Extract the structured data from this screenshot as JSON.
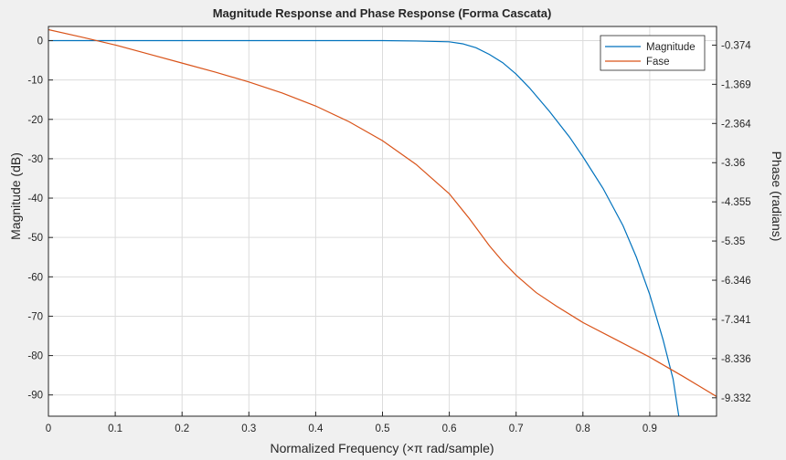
{
  "chart_data": {
    "type": "line",
    "title": "Magnitude Response and Phase Response (Forma Cascata)",
    "xlabel": "Normalized Frequency (×π rad/sample)",
    "ylabel_left": "Magnitude (dB)",
    "ylabel_right": "Phase (radians)",
    "xlim": [
      0,
      1
    ],
    "ylim_left": [
      -95.4,
      3.6
    ],
    "ylim_right": [
      -9.8,
      0.1
    ],
    "x_ticks": [
      "0",
      "0.1",
      "0.2",
      "0.3",
      "0.4",
      "0.5",
      "0.6",
      "0.7",
      "0.8",
      "0.9"
    ],
    "x_tick_values": [
      0,
      0.1,
      0.2,
      0.3,
      0.4,
      0.5,
      0.6,
      0.7,
      0.8,
      0.9
    ],
    "y_left_ticks": [
      "0",
      "-10",
      "-20",
      "-30",
      "-40",
      "-50",
      "-60",
      "-70",
      "-80",
      "-90"
    ],
    "y_left_tick_values": [
      0,
      -10,
      -20,
      -30,
      -40,
      -50,
      -60,
      -70,
      -80,
      -90
    ],
    "y_right_ticks": [
      "-0.374",
      "-1.369",
      "-2.364",
      "-3.36",
      "-4.355",
      "-5.35",
      "-6.346",
      "-7.341",
      "-8.336",
      "-9.332"
    ],
    "y_right_tick_values": [
      -0.374,
      -1.369,
      -2.364,
      -3.36,
      -4.355,
      -5.35,
      -6.346,
      -7.341,
      -8.336,
      -9.332
    ],
    "grid": true,
    "legend_position": "top-right",
    "series": [
      {
        "name": "Magnitude",
        "axis": "left",
        "color": "#0072BD",
        "x": [
          0,
          0.1,
          0.2,
          0.3,
          0.4,
          0.5,
          0.55,
          0.6,
          0.62,
          0.64,
          0.66,
          0.68,
          0.7,
          0.72,
          0.75,
          0.78,
          0.8,
          0.83,
          0.86,
          0.88,
          0.9,
          0.92,
          0.935,
          0.945
        ],
        "y": [
          0,
          0,
          0,
          0,
          0,
          0,
          -0.1,
          -0.3,
          -0.8,
          -1.8,
          -3.5,
          -5.6,
          -8.5,
          -12,
          -18,
          -24.5,
          -29.5,
          -37.5,
          -47,
          -55,
          -64.5,
          -76,
          -86,
          -97
        ]
      },
      {
        "name": "Fase",
        "axis": "right",
        "color": "#D95319",
        "x": [
          0,
          0.05,
          0.1,
          0.15,
          0.2,
          0.25,
          0.3,
          0.35,
          0.4,
          0.45,
          0.5,
          0.55,
          0.6,
          0.63,
          0.66,
          0.68,
          0.7,
          0.73,
          0.76,
          0.8,
          0.85,
          0.9,
          0.95,
          1.0
        ],
        "y": [
          0.02,
          -0.17,
          -0.37,
          -0.6,
          -0.83,
          -1.06,
          -1.31,
          -1.59,
          -1.92,
          -2.32,
          -2.8,
          -3.4,
          -4.15,
          -4.78,
          -5.47,
          -5.87,
          -6.22,
          -6.66,
          -7.0,
          -7.42,
          -7.86,
          -8.3,
          -8.79,
          -9.3
        ]
      }
    ]
  }
}
